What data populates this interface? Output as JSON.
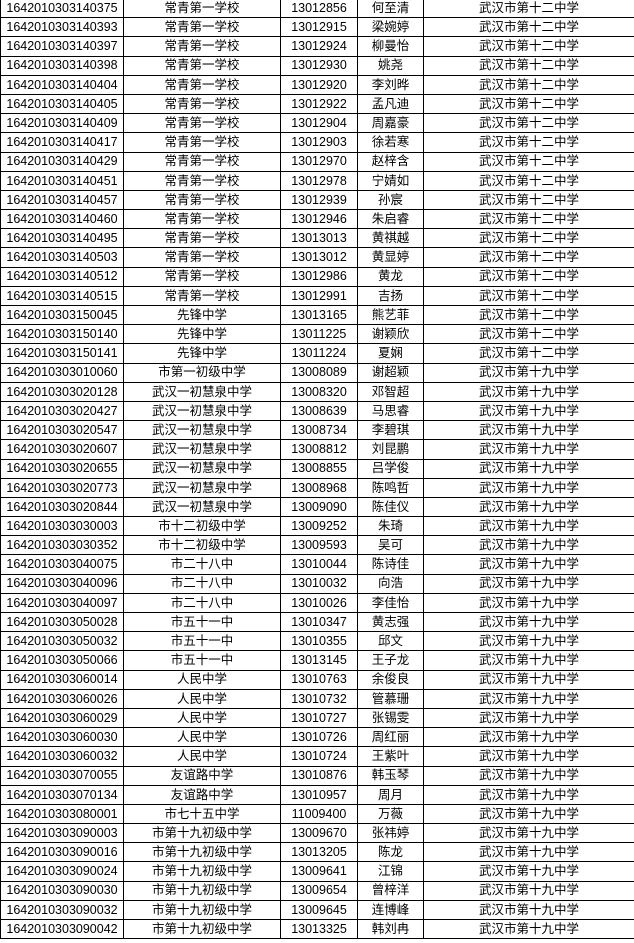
{
  "table": {
    "rows": [
      [
        "1642010303140375",
        "常青第一学校",
        "13012856",
        "何至清",
        "武汉市第十二中学"
      ],
      [
        "1642010303140393",
        "常青第一学校",
        "13012915",
        "梁婉婷",
        "武汉市第十二中学"
      ],
      [
        "1642010303140397",
        "常青第一学校",
        "13012924",
        "柳曼怡",
        "武汉市第十二中学"
      ],
      [
        "1642010303140398",
        "常青第一学校",
        "13012930",
        "姚尧",
        "武汉市第十二中学"
      ],
      [
        "1642010303140404",
        "常青第一学校",
        "13012920",
        "李刘晔",
        "武汉市第十二中学"
      ],
      [
        "1642010303140405",
        "常青第一学校",
        "13012922",
        "孟凡迪",
        "武汉市第十二中学"
      ],
      [
        "1642010303140409",
        "常青第一学校",
        "13012904",
        "周嘉豪",
        "武汉市第十二中学"
      ],
      [
        "1642010303140417",
        "常青第一学校",
        "13012903",
        "徐若寒",
        "武汉市第十二中学"
      ],
      [
        "1642010303140429",
        "常青第一学校",
        "13012970",
        "赵梓含",
        "武汉市第十二中学"
      ],
      [
        "1642010303140451",
        "常青第一学校",
        "13012978",
        "宁婧如",
        "武汉市第十二中学"
      ],
      [
        "1642010303140457",
        "常青第一学校",
        "13012939",
        "孙宸",
        "武汉市第十二中学"
      ],
      [
        "1642010303140460",
        "常青第一学校",
        "13012946",
        "朱启睿",
        "武汉市第十二中学"
      ],
      [
        "1642010303140495",
        "常青第一学校",
        "13013013",
        "黄祺越",
        "武汉市第十二中学"
      ],
      [
        "1642010303140503",
        "常青第一学校",
        "13013012",
        "黄显婷",
        "武汉市第十二中学"
      ],
      [
        "1642010303140512",
        "常青第一学校",
        "13012986",
        "黄龙",
        "武汉市第十二中学"
      ],
      [
        "1642010303140515",
        "常青第一学校",
        "13012991",
        "吉扬",
        "武汉市第十二中学"
      ],
      [
        "1642010303150045",
        "先锋中学",
        "13013165",
        "熊艺菲",
        "武汉市第十二中学"
      ],
      [
        "1642010303150140",
        "先锋中学",
        "13011225",
        "谢颖欣",
        "武汉市第十二中学"
      ],
      [
        "1642010303150141",
        "先锋中学",
        "13011224",
        "夏娴",
        "武汉市第十二中学"
      ],
      [
        "1642010303010060",
        "市第一初级中学",
        "13008089",
        "谢超颖",
        "武汉市第十九中学"
      ],
      [
        "1642010303020128",
        "武汉一初慧泉中学",
        "13008320",
        "邓智超",
        "武汉市第十九中学"
      ],
      [
        "1642010303020427",
        "武汉一初慧泉中学",
        "13008639",
        "马思睿",
        "武汉市第十九中学"
      ],
      [
        "1642010303020547",
        "武汉一初慧泉中学",
        "13008734",
        "李碧琪",
        "武汉市第十九中学"
      ],
      [
        "1642010303020607",
        "武汉一初慧泉中学",
        "13008812",
        "刘昆鹏",
        "武汉市第十九中学"
      ],
      [
        "1642010303020655",
        "武汉一初慧泉中学",
        "13008855",
        "吕学俊",
        "武汉市第十九中学"
      ],
      [
        "1642010303020773",
        "武汉一初慧泉中学",
        "13008968",
        "陈鸣哲",
        "武汉市第十九中学"
      ],
      [
        "1642010303020844",
        "武汉一初慧泉中学",
        "13009090",
        "陈佳仪",
        "武汉市第十九中学"
      ],
      [
        "1642010303030003",
        "市十二初级中学",
        "13009252",
        "朱琦",
        "武汉市第十九中学"
      ],
      [
        "1642010303030352",
        "市十二初级中学",
        "13009593",
        "吴可",
        "武汉市第十九中学"
      ],
      [
        "1642010303040075",
        "市二十八中",
        "13010044",
        "陈诗佳",
        "武汉市第十九中学"
      ],
      [
        "1642010303040096",
        "市二十八中",
        "13010032",
        "向浩",
        "武汉市第十九中学"
      ],
      [
        "1642010303040097",
        "市二十八中",
        "13010026",
        "李佳怡",
        "武汉市第十九中学"
      ],
      [
        "1642010303050028",
        "市五十一中",
        "13010347",
        "黄志强",
        "武汉市第十九中学"
      ],
      [
        "1642010303050032",
        "市五十一中",
        "13010355",
        "邱文",
        "武汉市第十九中学"
      ],
      [
        "1642010303050066",
        "市五十一中",
        "13013145",
        "王子龙",
        "武汉市第十九中学"
      ],
      [
        "1642010303060014",
        "人民中学",
        "13010763",
        "余俊良",
        "武汉市第十九中学"
      ],
      [
        "1642010303060026",
        "人民中学",
        "13010732",
        "管慕珊",
        "武汉市第十九中学"
      ],
      [
        "1642010303060029",
        "人民中学",
        "13010727",
        "张锡雯",
        "武汉市第十九中学"
      ],
      [
        "1642010303060030",
        "人民中学",
        "13010726",
        "周红丽",
        "武汉市第十九中学"
      ],
      [
        "1642010303060032",
        "人民中学",
        "13010724",
        "王紫叶",
        "武汉市第十九中学"
      ],
      [
        "1642010303070055",
        "友谊路中学",
        "13010876",
        "韩玉琴",
        "武汉市第十九中学"
      ],
      [
        "1642010303070134",
        "友谊路中学",
        "13010957",
        "周月",
        "武汉市第十九中学"
      ],
      [
        "1642010303080001",
        "市七十五中学",
        "11009400",
        "万薇",
        "武汉市第十九中学"
      ],
      [
        "1642010303090003",
        "市第十九初级中学",
        "13009670",
        "张祎婷",
        "武汉市第十九中学"
      ],
      [
        "1642010303090016",
        "市第十九初级中学",
        "13013205",
        "陈龙",
        "武汉市第十九中学"
      ],
      [
        "1642010303090024",
        "市第十九初级中学",
        "13009641",
        "江锦",
        "武汉市第十九中学"
      ],
      [
        "1642010303090030",
        "市第十九初级中学",
        "13009654",
        "曾梓洋",
        "武汉市第十九中学"
      ],
      [
        "1642010303090032",
        "市第十九初级中学",
        "13009645",
        "连博峰",
        "武汉市第十九中学"
      ],
      [
        "1642010303090042",
        "市第十九初级中学",
        "13013325",
        "韩刘冉",
        "武汉市第十九中学"
      ]
    ],
    "colors": {
      "background": "#ffffff",
      "border": "#000000",
      "text": "#000000"
    }
  }
}
